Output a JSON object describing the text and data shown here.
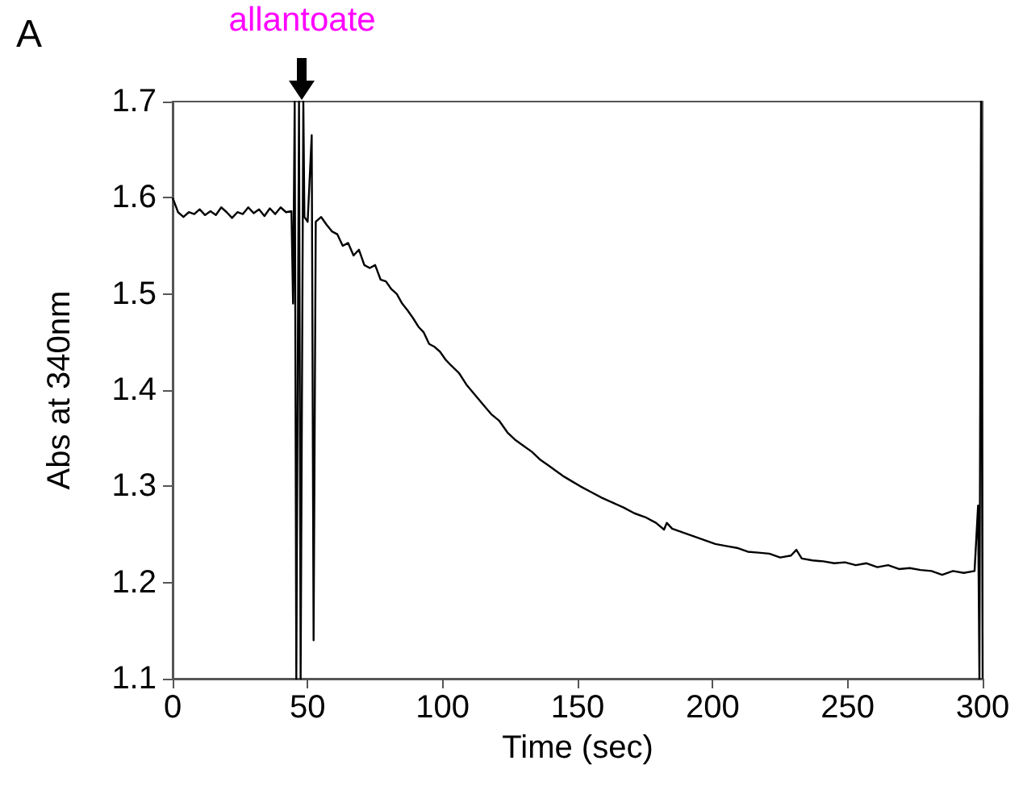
{
  "chart_data": {
    "type": "line",
    "xlabel": "Time (sec)",
    "ylabel": "Abs at 340nm",
    "xlim": [
      0,
      300
    ],
    "xticks": [
      0,
      50,
      100,
      150,
      200,
      250,
      300
    ],
    "ylim": [
      1.1,
      1.7
    ],
    "yticks": [
      1.1,
      1.2,
      1.3,
      1.4,
      1.5,
      1.6,
      1.7
    ],
    "grid": false,
    "annotations": [
      "A",
      {
        "text": "allantoate",
        "x": 48,
        "y": 1.7
      }
    ],
    "series": [
      {
        "color": "#000000",
        "x": [
          0,
          2,
          4,
          6,
          8,
          10,
          12,
          14,
          16,
          18,
          20,
          22,
          24,
          26,
          28,
          30,
          32,
          34,
          36,
          38,
          40,
          42,
          44,
          44.6,
          45.2,
          45.8,
          46.8,
          47.4,
          48.4,
          48.8,
          50,
          51.5,
          52.2,
          53,
          55,
          57,
          59,
          61,
          63,
          65,
          67,
          69,
          71,
          73,
          75,
          77,
          79,
          81,
          83,
          85,
          87,
          89,
          91,
          93,
          95,
          97,
          99,
          101,
          103,
          106,
          109,
          112,
          115,
          118,
          121,
          124,
          127,
          130,
          133,
          136,
          139,
          142,
          145,
          148,
          151,
          155,
          159,
          163,
          167,
          171,
          175,
          179,
          182,
          183,
          185,
          189,
          193,
          197,
          201,
          205,
          209,
          213,
          217,
          221,
          225,
          229,
          231,
          233,
          237,
          241,
          245,
          249,
          253,
          257,
          261,
          265,
          269,
          273,
          277,
          281,
          285,
          289,
          293,
          297,
          298.3,
          298.8,
          299.4,
          300
        ],
        "values": [
          1.6,
          1.585,
          1.58,
          1.585,
          1.583,
          1.588,
          1.582,
          1.586,
          1.582,
          1.59,
          1.585,
          1.579,
          1.585,
          1.583,
          1.59,
          1.584,
          1.588,
          1.581,
          1.589,
          1.583,
          1.59,
          1.585,
          1.586,
          1.49,
          1.7,
          1.1,
          1.7,
          1.1,
          1.7,
          1.58,
          1.575,
          1.665,
          1.14,
          1.575,
          1.58,
          1.572,
          1.565,
          1.562,
          1.55,
          1.553,
          1.54,
          1.546,
          1.53,
          1.527,
          1.53,
          1.515,
          1.513,
          1.505,
          1.5,
          1.49,
          1.483,
          1.475,
          1.466,
          1.46,
          1.448,
          1.445,
          1.44,
          1.432,
          1.426,
          1.418,
          1.405,
          1.395,
          1.385,
          1.375,
          1.368,
          1.356,
          1.348,
          1.342,
          1.336,
          1.328,
          1.322,
          1.316,
          1.31,
          1.305,
          1.3,
          1.294,
          1.288,
          1.283,
          1.278,
          1.272,
          1.268,
          1.262,
          1.255,
          1.262,
          1.256,
          1.252,
          1.248,
          1.244,
          1.24,
          1.238,
          1.236,
          1.232,
          1.231,
          1.23,
          1.226,
          1.228,
          1.234,
          1.225,
          1.223,
          1.222,
          1.22,
          1.221,
          1.218,
          1.22,
          1.216,
          1.218,
          1.214,
          1.215,
          1.213,
          1.212,
          1.208,
          1.212,
          1.21,
          1.212,
          1.28,
          1.1,
          1.7,
          1.1
        ]
      }
    ]
  }
}
